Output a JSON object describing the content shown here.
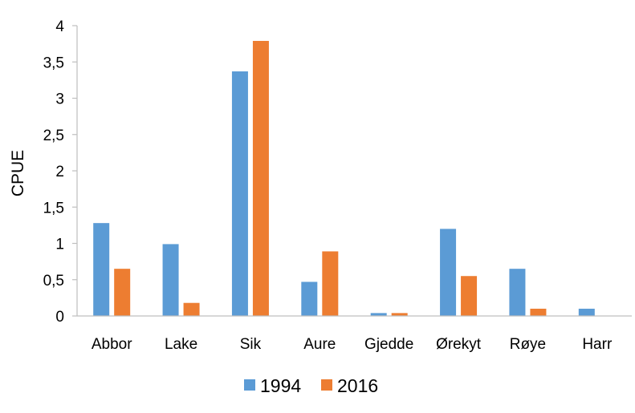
{
  "chart_data": {
    "type": "bar",
    "title": "",
    "xlabel": "",
    "ylabel": "CPUE",
    "ylim": [
      0,
      4
    ],
    "yticks": [
      0,
      0.5,
      1,
      1.5,
      2,
      2.5,
      3,
      3.5,
      4
    ],
    "ytick_labels": [
      "0",
      "0,5",
      "1",
      "1,5",
      "2",
      "2,5",
      "3",
      "3,5",
      "4"
    ],
    "grid": false,
    "legend_position": "bottom",
    "categories": [
      "Abbor",
      "Lake",
      "Sik",
      "Aure",
      "Gjedde",
      "Ørekyt",
      "Røye",
      "Harr"
    ],
    "series": [
      {
        "name": "1994",
        "color": "#5b9bd5",
        "values": [
          1.28,
          0.99,
          3.37,
          0.47,
          0.04,
          1.2,
          0.65,
          0.1
        ]
      },
      {
        "name": "2016",
        "color": "#ed7d31",
        "values": [
          0.65,
          0.18,
          3.79,
          0.89,
          0.04,
          0.55,
          0.1,
          0
        ]
      }
    ]
  }
}
